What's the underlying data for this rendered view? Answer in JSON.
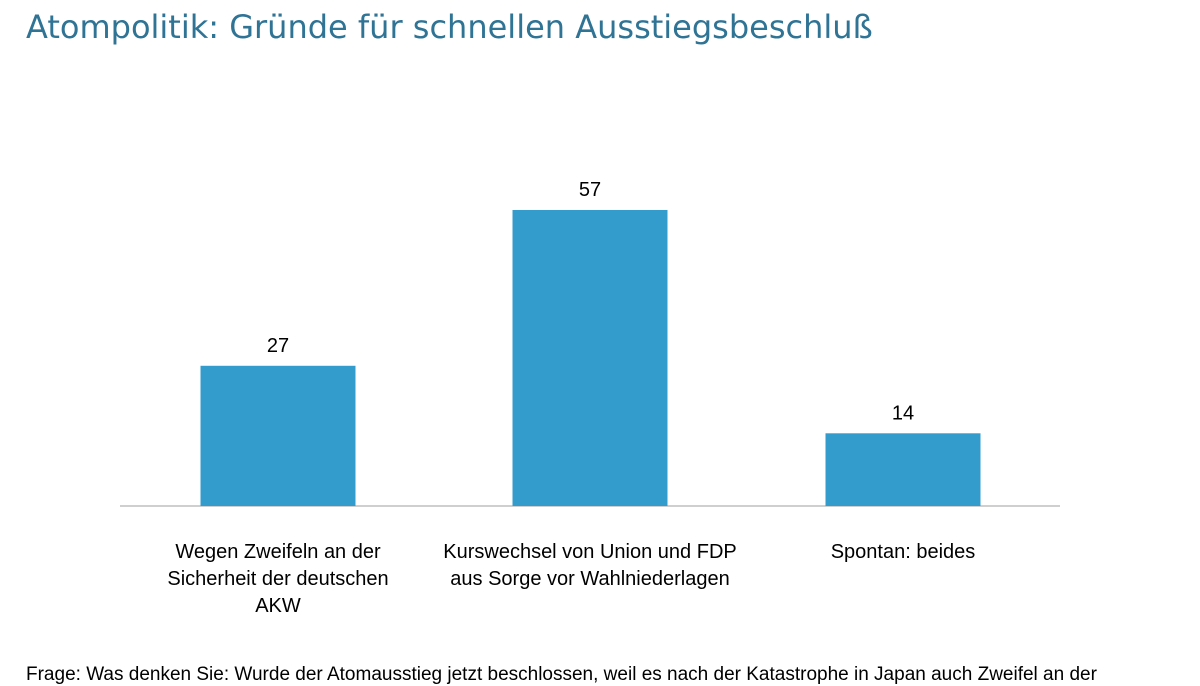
{
  "chart_data": {
    "type": "bar",
    "title": "Atompolitik: Gründe für schnellen Ausstiegsbeschluß",
    "categories": [
      "Wegen Zweifeln an der Sicherheit der deutschen AKW",
      "Kurswechsel von Union und FDP aus Sorge vor Wahlniederlagen",
      "Spontan: beides"
    ],
    "values": [
      27,
      57,
      14
    ],
    "data_labels": [
      "27",
      "57",
      "14"
    ],
    "ylim": [
      0,
      60
    ],
    "grid": false,
    "bar_color": "#349ccc",
    "title_color": "#2f7395"
  },
  "footer": "Frage: Was denken Sie: Wurde der Atomausstieg jetzt beschlossen, weil es nach der Katastrophe in Japan auch Zweifel an der"
}
